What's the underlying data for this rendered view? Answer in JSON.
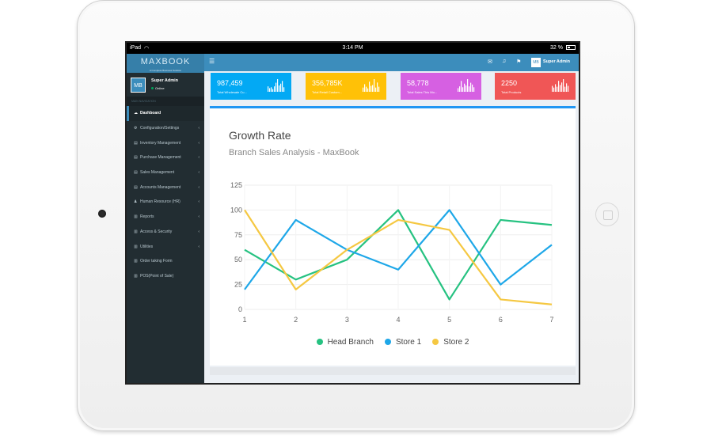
{
  "statusbar": {
    "carrier": "iPad",
    "time": "3:14 PM",
    "battery": "32 %"
  },
  "app": {
    "logo": "MAXBOOK",
    "tagline": "A Complete Business Solution"
  },
  "user": {
    "avatar": "MB",
    "name": "Super Admin",
    "status": "Online"
  },
  "nav_header": "MAIN NAVIGATION",
  "nav": [
    {
      "label": "Dashboard",
      "icon": "dashboard-icon",
      "glyph": "☁",
      "active": true,
      "chevron": false
    },
    {
      "label": "Configuration/Settings",
      "icon": "gear-icon",
      "glyph": "⚙",
      "active": false,
      "chevron": true
    },
    {
      "label": "Inventory Management",
      "icon": "book-icon",
      "glyph": "▤",
      "active": false,
      "chevron": true
    },
    {
      "label": "Purchase Management",
      "icon": "book-icon",
      "glyph": "▤",
      "active": false,
      "chevron": true
    },
    {
      "label": "Sales Management",
      "icon": "book-icon",
      "glyph": "▤",
      "active": false,
      "chevron": true
    },
    {
      "label": "Accounts Management",
      "icon": "book-icon",
      "glyph": "▤",
      "active": false,
      "chevron": true
    },
    {
      "label": "Human Resource (HR)",
      "icon": "users-icon",
      "glyph": "♟",
      "active": false,
      "chevron": true
    },
    {
      "label": "Reports",
      "icon": "bar-chart-icon",
      "glyph": "▥",
      "active": false,
      "chevron": true
    },
    {
      "label": "Access & Security",
      "icon": "bar-chart-icon",
      "glyph": "▥",
      "active": false,
      "chevron": true
    },
    {
      "label": "Utilities",
      "icon": "bar-chart-icon",
      "glyph": "▥",
      "active": false,
      "chevron": true
    },
    {
      "label": "Order taking Form",
      "icon": "bar-chart-icon",
      "glyph": "▥",
      "active": false,
      "chevron": false
    },
    {
      "label": "POS(Point of Sale)",
      "icon": "bar-chart-icon",
      "glyph": "▥",
      "active": false,
      "chevron": false
    }
  ],
  "topbar": {
    "menu_icon": "☰",
    "mail_icon": "✉",
    "bell_icon": "♫",
    "flag_icon": "⚑",
    "admin_avatar": "MB",
    "admin_name": "Super Admin"
  },
  "info_boxes": [
    {
      "value": "987,459",
      "label": "Total Wholesale Cu...",
      "color": "#03a9f4",
      "spark": [
        6,
        4,
        5,
        3,
        6,
        10,
        14,
        7,
        9,
        12,
        5
      ]
    },
    {
      "value": "356,785K",
      "label": "Total Retail Custom...",
      "color": "#ffc107",
      "spark": [
        5,
        9,
        6,
        4,
        12,
        7,
        8,
        15,
        5,
        11,
        6
      ]
    },
    {
      "value": "58,778",
      "label": "Total Sales This Mo...",
      "color": "#d660e2",
      "spark": [
        4,
        6,
        12,
        5,
        9,
        7,
        14,
        6,
        10,
        8,
        5
      ]
    },
    {
      "value": "2250",
      "label": "Total Products",
      "color": "#f05656",
      "spark": [
        7,
        5,
        9,
        6,
        13,
        8,
        11,
        15,
        6,
        10,
        7
      ]
    }
  ],
  "chart_data": {
    "type": "line",
    "title": "Growth Rate",
    "subtitle": "Branch Sales Analysis - MaxBook",
    "categories": [
      "1",
      "2",
      "3",
      "4",
      "5",
      "6",
      "7"
    ],
    "ylim": [
      0,
      125
    ],
    "yticks": [
      "0",
      "25",
      "50",
      "75",
      "100",
      "125"
    ],
    "grid": true,
    "legend_position": "bottom",
    "series": [
      {
        "name": "Head Branch",
        "color": "#26c281",
        "values": [
          60,
          30,
          50,
          100,
          10,
          90,
          85
        ]
      },
      {
        "name": "Store 1",
        "color": "#1ea7e8",
        "values": [
          20,
          90,
          60,
          40,
          100,
          25,
          65
        ]
      },
      {
        "name": "Store 2",
        "color": "#f5c842",
        "values": [
          100,
          20,
          60,
          90,
          80,
          10,
          5
        ]
      }
    ]
  }
}
